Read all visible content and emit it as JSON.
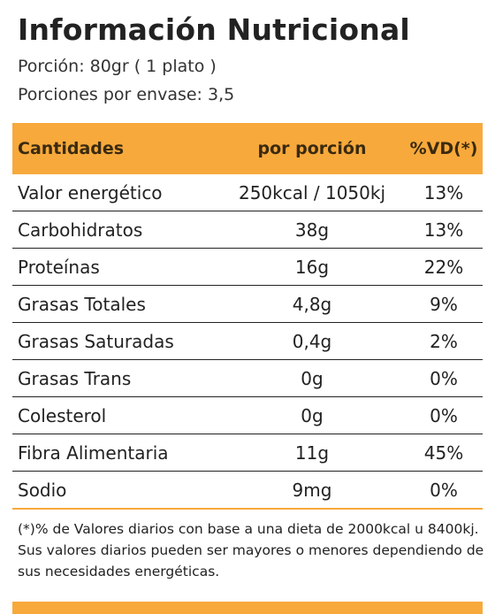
{
  "title": "Información Nutricional",
  "serving_size": "Porción: 80gr ( 1 plato )",
  "servings_per_container": "Porciones por envase: 3,5",
  "table": {
    "headers": [
      "Cantidades",
      "por porción",
      "%VD(*)"
    ],
    "rows": [
      {
        "name": "Valor energético",
        "amount": "250kcal / 1050kj",
        "dv": "13%"
      },
      {
        "name": "Carbohidratos",
        "amount": "38g",
        "dv": "13%"
      },
      {
        "name": "Proteínas",
        "amount": "16g",
        "dv": "22%"
      },
      {
        "name": "Grasas Totales",
        "amount": "4,8g",
        "dv": "9%"
      },
      {
        "name": "Grasas Saturadas",
        "amount": "0,4g",
        "dv": "2%"
      },
      {
        "name": "Grasas Trans",
        "amount": "0g",
        "dv": "0%"
      },
      {
        "name": "Colesterol",
        "amount": "0g",
        "dv": "0%"
      },
      {
        "name": "Fibra Alimentaria",
        "amount": "11g",
        "dv": "45%"
      },
      {
        "name": "Sodio",
        "amount": "9mg",
        "dv": "0%"
      }
    ]
  },
  "footnote": "(*)% de Valores diarios con base a una dieta de 2000kcal u 8400kj.  Sus valores diarios pueden ser mayores o menores dependiendo  de sus necesidades energéticas.",
  "colors": {
    "accent": "#f7a93b",
    "text": "#222222"
  }
}
